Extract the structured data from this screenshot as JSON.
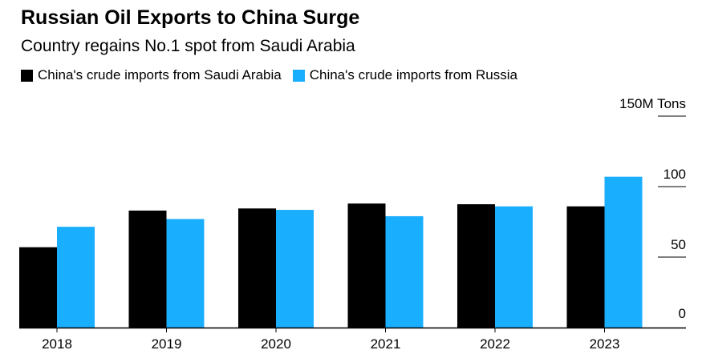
{
  "header": {
    "title": "Russian Oil Exports to China Surge",
    "subtitle": "Country regains No.1 spot from Saudi Arabia"
  },
  "chart_data": {
    "type": "bar",
    "title": "Russian Oil Exports to China Surge",
    "subtitle": "Country regains No.1 spot from Saudi Arabia",
    "unit": "150M Tons",
    "xlabel": "",
    "ylabel": "",
    "ylim": [
      0,
      150
    ],
    "yticks": [
      "0",
      "50",
      "100",
      "150M Tons"
    ],
    "grid": true,
    "legend_position": "top-left",
    "categories": [
      "2018",
      "2019",
      "2020",
      "2021",
      "2022",
      "2023"
    ],
    "series": [
      {
        "name": "China's crude imports from Saudi Arabia",
        "color": "#000000",
        "values": [
          57,
          83,
          84.5,
          88,
          87.5,
          86
        ]
      },
      {
        "name": "China's crude imports from Russia",
        "color": "#1aaeff",
        "values": [
          71.5,
          77,
          83.5,
          79,
          86,
          107
        ]
      }
    ]
  }
}
